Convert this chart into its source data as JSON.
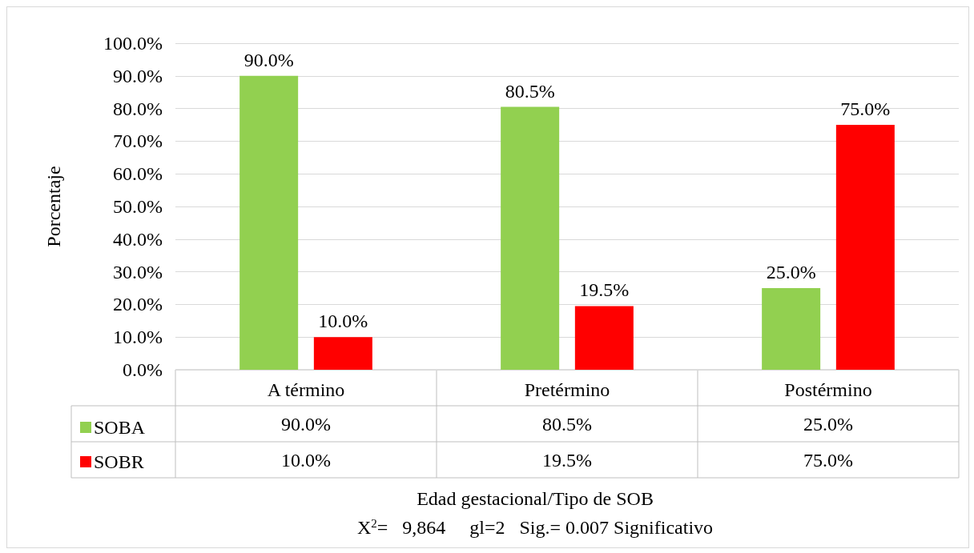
{
  "chart_data": {
    "type": "bar",
    "xlabel": "Edad gestacional/Tipo de SOB",
    "ylabel": "Porcentaje",
    "categories": [
      "A término",
      "Pretérmino",
      "Postérmino"
    ],
    "series": [
      {
        "name": "SOBA",
        "color": "#92d050",
        "values": [
          90.0,
          80.5,
          25.0
        ],
        "value_labels": [
          "90.0%",
          "80.5%",
          "25.0%"
        ]
      },
      {
        "name": "SOBR",
        "color": "#ff0000",
        "values": [
          10.0,
          19.5,
          75.0
        ],
        "value_labels": [
          "10.0%",
          "19.5%",
          "75.0%"
        ]
      }
    ],
    "ylim": [
      0,
      100
    ],
    "yticks": [
      {
        "value": 0,
        "label": "0.0%"
      },
      {
        "value": 10,
        "label": "10.0%"
      },
      {
        "value": 20,
        "label": "20.0%"
      },
      {
        "value": 30,
        "label": "30.0%"
      },
      {
        "value": 40,
        "label": "40.0%"
      },
      {
        "value": 50,
        "label": "50.0%"
      },
      {
        "value": 60,
        "label": "60.0%"
      },
      {
        "value": 70,
        "label": "70.0%"
      },
      {
        "value": 80,
        "label": "80.0%"
      },
      {
        "value": 90,
        "label": "90.0%"
      },
      {
        "value": 100,
        "label": "100.0%"
      }
    ],
    "grid": "y",
    "legend": "bottom left",
    "annotations": [
      "X$^{2}$=   9,864     gl=2   Sig.= 0.007 Significativo"
    ]
  }
}
